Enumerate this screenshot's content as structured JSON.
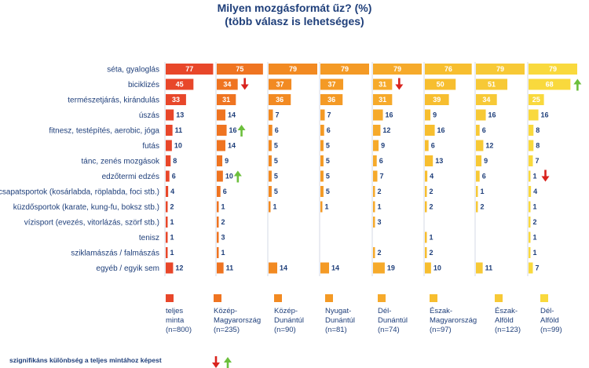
{
  "chart_data": {
    "type": "bar",
    "title": "Milyen mozgásformát űz? (%)",
    "subtitle": "(több válasz is lehetséges)",
    "categories": [
      "séta, gyaloglás",
      "biciklizés",
      "természetjárás, kirándulás",
      "úszás",
      "fitnesz, testépítés, aerobic, jóga",
      "futás",
      "tánc, zenés mozgások",
      "edzőtermi edzés",
      "csapatsportok (kosárlabda, röplabda, foci stb.)",
      "küzdősportok (karate, kung-fu, boksz stb.)",
      "vízisport (evezés, vitorlázás, szörf stb.)",
      "tenisz",
      "sziklamászás / falmászás",
      "egyéb / egyik sem"
    ],
    "series": [
      {
        "name": "teljes minta (n=800)",
        "label_lines": [
          "teljes",
          "minta",
          "(n=800)"
        ],
        "color": "#e8472a",
        "text": "#ffffff",
        "values": [
          77,
          45,
          33,
          13,
          11,
          10,
          8,
          6,
          4,
          2,
          1,
          1,
          1,
          12
        ]
      },
      {
        "name": "Közép-Magyarország (n=235)",
        "label_lines": [
          "Közép-",
          "Magyarország",
          "(n=235)"
        ],
        "color": "#ef7421",
        "text": "#ffffff",
        "values": [
          75,
          34,
          31,
          14,
          16,
          14,
          9,
          10,
          6,
          1,
          2,
          3,
          1,
          11
        ]
      },
      {
        "name": "Közép-Dunántúl (n=90)",
        "label_lines": [
          "Közép-",
          "Dunántúl",
          "(n=90)"
        ],
        "color": "#f28a22",
        "text": "#ffffff",
        "values": [
          79,
          37,
          36,
          7,
          6,
          5,
          5,
          5,
          5,
          1,
          null,
          null,
          null,
          14
        ]
      },
      {
        "name": "Nyugat-Dunántúl (n=81)",
        "label_lines": [
          "Nyugat-",
          "Dunántúl",
          "(n=81)"
        ],
        "color": "#f49a25",
        "text": "#ffffff",
        "values": [
          79,
          37,
          36,
          7,
          6,
          5,
          5,
          5,
          5,
          1,
          null,
          null,
          null,
          14
        ]
      },
      {
        "name": "Dél-Dunántúl (n=74)",
        "label_lines": [
          "Dél-",
          "Dunántúl",
          "(n=74)"
        ],
        "color": "#f6aa2b",
        "text": "#ffffff",
        "values": [
          79,
          31,
          31,
          16,
          12,
          9,
          6,
          7,
          2,
          1,
          3,
          null,
          2,
          19
        ]
      },
      {
        "name": "Észak-Magyarország (n=97)",
        "label_lines": [
          "Észak-",
          "Magyarország",
          "(n=97)"
        ],
        "color": "#f7be2f",
        "text": "#ffffff",
        "values": [
          76,
          50,
          39,
          9,
          16,
          6,
          13,
          4,
          2,
          2,
          null,
          1,
          2,
          10
        ]
      },
      {
        "name": "Észak-Alföld (n=123)",
        "label_lines": [
          "Észak-",
          "Alföld",
          "(n=123)"
        ],
        "color": "#f7c936",
        "text": "#ffffff",
        "values": [
          79,
          51,
          34,
          16,
          6,
          12,
          9,
          6,
          1,
          2,
          null,
          null,
          null,
          11
        ]
      },
      {
        "name": "Dél-Alföld (n=99)",
        "label_lines": [
          "Dél-",
          "Alföld",
          "(n=99)"
        ],
        "color": "#f9d93d",
        "text": "#ffffff",
        "values": [
          79,
          68,
          25,
          16,
          8,
          8,
          7,
          1,
          4,
          1,
          2,
          1,
          1,
          7
        ]
      }
    ],
    "significance": [
      {
        "series": 1,
        "category": 1,
        "direction": "down"
      },
      {
        "series": 1,
        "category": 4,
        "direction": "up"
      },
      {
        "series": 1,
        "category": 7,
        "direction": "up"
      },
      {
        "series": 4,
        "category": 1,
        "direction": "down"
      },
      {
        "series": 7,
        "category": 1,
        "direction": "up"
      },
      {
        "series": 7,
        "category": 7,
        "direction": "down"
      }
    ],
    "arrow_colors": {
      "down": "#d9231d",
      "up": "#6cbf3c"
    },
    "legend_note": "szignifikáns különbség a teljes mintához képest",
    "grid": false,
    "legend_position": "bottom"
  }
}
